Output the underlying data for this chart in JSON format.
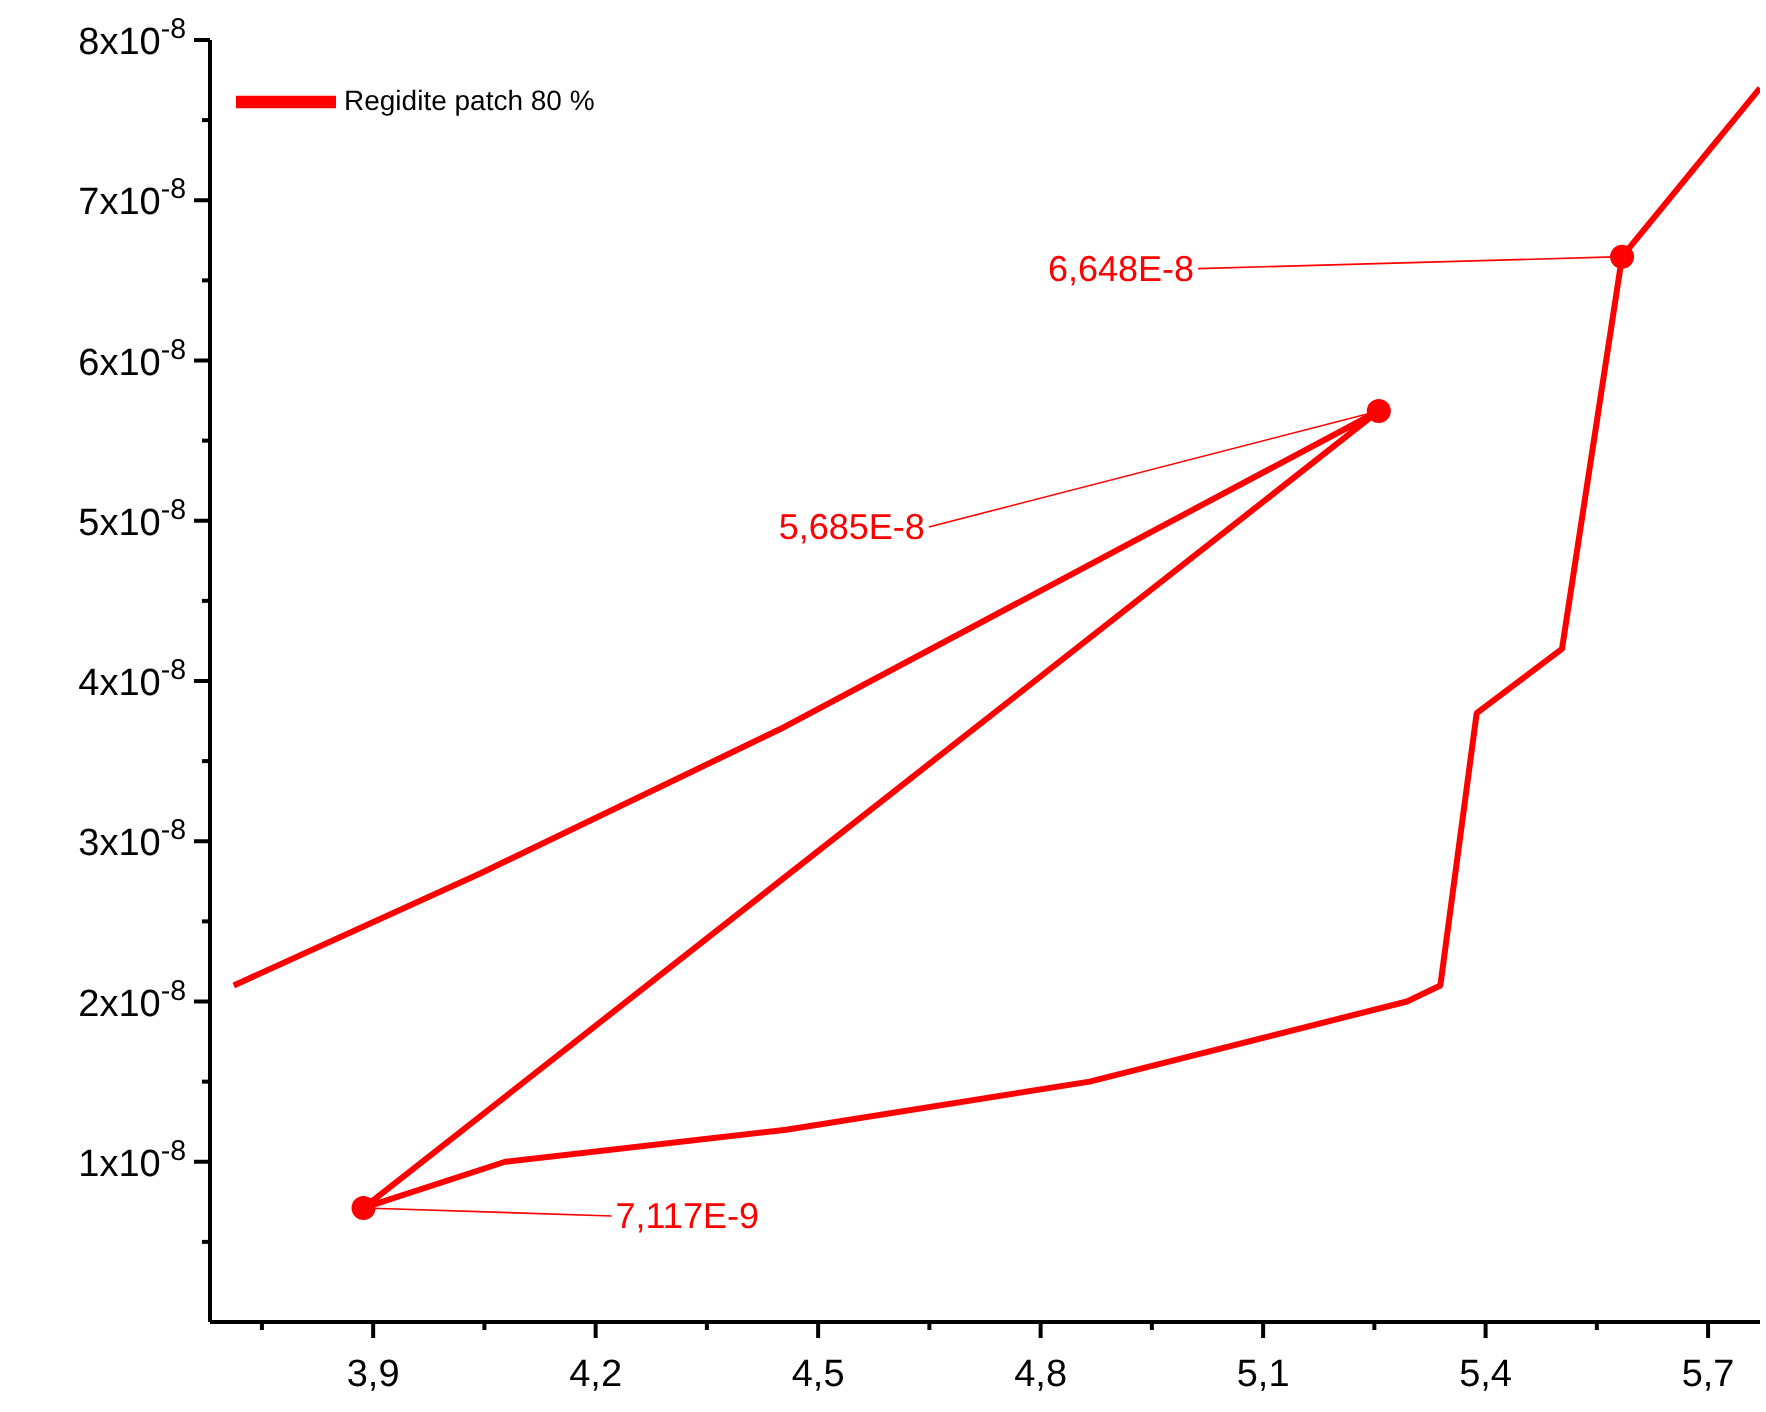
{
  "chart_data": {
    "type": "line",
    "legend": "top left",
    "marker": "none",
    "line_style": "solid",
    "xlim": [
      3.68,
      5.77
    ],
    "xticks": [
      {
        "value": 3.75,
        "label": null
      },
      {
        "value": 3.9,
        "label": "3,9"
      },
      {
        "value": 4.05,
        "label": null
      },
      {
        "value": 4.2,
        "label": "4,2"
      },
      {
        "value": 4.35,
        "label": null
      },
      {
        "value": 4.5,
        "label": "4,5"
      },
      {
        "value": 4.65,
        "label": null
      },
      {
        "value": 4.8,
        "label": "4,8"
      },
      {
        "value": 4.95,
        "label": null
      },
      {
        "value": 5.1,
        "label": "5,1"
      },
      {
        "value": 5.25,
        "label": null
      },
      {
        "value": 5.4,
        "label": "5,4"
      },
      {
        "value": 5.55,
        "label": null
      },
      {
        "value": 5.7,
        "label": "5,7"
      }
    ],
    "ylim": [
      0,
      8e-08
    ],
    "yticks": [
      {
        "value": 5e-09,
        "label": null
      },
      {
        "value": 1e-08,
        "label": "1x10$^{-8}$"
      },
      {
        "value": 1.5e-08,
        "label": null
      },
      {
        "value": 2e-08,
        "label": "2x10$^{-8}$"
      },
      {
        "value": 2.5e-08,
        "label": null
      },
      {
        "value": 3e-08,
        "label": "3x10$^{-8}$"
      },
      {
        "value": 3.5e-08,
        "label": null
      },
      {
        "value": 4e-08,
        "label": "4x10$^{-8}$"
      },
      {
        "value": 4.5e-08,
        "label": null
      },
      {
        "value": 5e-08,
        "label": "5x10$^{-8}$"
      },
      {
        "value": 5.5e-08,
        "label": null
      },
      {
        "value": 6e-08,
        "label": "6x10$^{-8}$"
      },
      {
        "value": 6.5e-08,
        "label": null
      },
      {
        "value": 7e-08,
        "label": "7x10$^{-8}$"
      },
      {
        "value": 7.5e-08,
        "label": null
      },
      {
        "value": 8e-08,
        "label": "8x10$^{-8}$"
      }
    ],
    "series": [
      {
        "name": "Regidite patch 80 %",
        "color": "#ff0000",
        "x": [
          3.712,
          4.045,
          4.449,
          5.256,
          3.887,
          4.078,
          4.457,
          4.866,
          5.294,
          5.339,
          5.388,
          5.503,
          5.584,
          5.77
        ],
        "values": [
          2.1e-08,
          2.8e-08,
          3.7e-08,
          5.685e-08,
          7.117e-09,
          1e-08,
          1.2e-08,
          1.5e-08,
          2e-08,
          2.1e-08,
          3.8e-08,
          4.2e-08,
          6.648e-08,
          7.7e-08
        ]
      }
    ],
    "annotations": [
      {
        "text": "6,648E-8",
        "x": 5.584,
        "y": 6.648e-08
      },
      {
        "text": "5,685E-8",
        "x": 5.256,
        "y": 5.685e-08
      },
      {
        "text": "7,117E-9",
        "x": 3.887,
        "y": 7.117e-09
      }
    ]
  }
}
